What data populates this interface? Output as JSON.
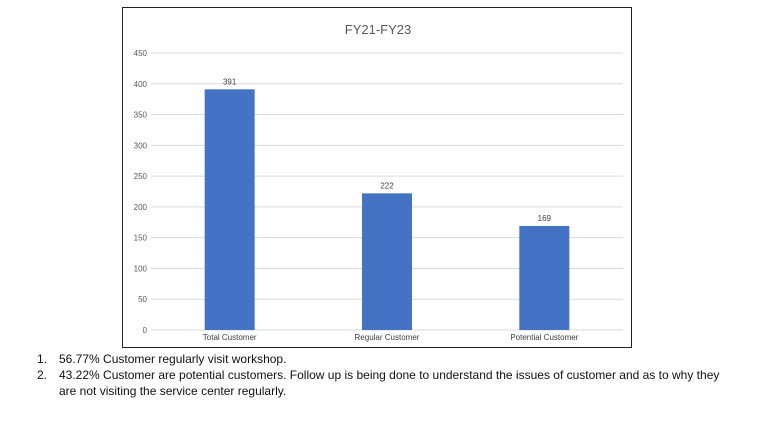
{
  "chart_data": {
    "type": "bar",
    "title": "FY21-FY23",
    "categories": [
      "Total Customer",
      "Regular Customer",
      "Potential Customer"
    ],
    "values": [
      391,
      222,
      169
    ],
    "data_labels": [
      "391",
      "222",
      "169"
    ],
    "ylim": [
      0,
      450
    ],
    "yticks": [
      0,
      50,
      100,
      150,
      200,
      250,
      300,
      350,
      400,
      450
    ],
    "grid": true,
    "legend": "none",
    "bar_color": "#4472c4",
    "gridline_color": "#d9d9d9"
  },
  "notes": [
    {
      "num": "1.",
      "text": "56.77% Customer regularly visit workshop."
    },
    {
      "num": "2.",
      "text": "43.22% Customer are potential customers. Follow up is being done to understand the issues of customer and as to why they are not visiting the service center regularly."
    }
  ]
}
